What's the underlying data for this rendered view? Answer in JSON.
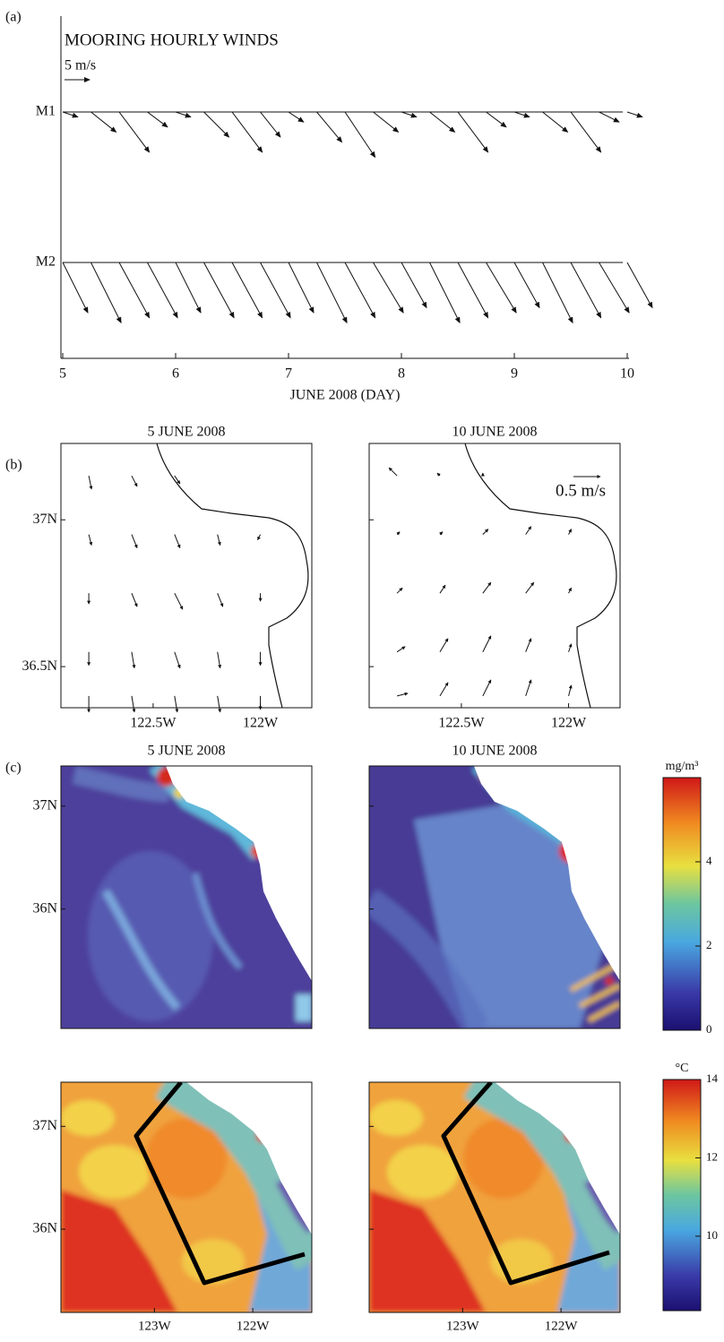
{
  "chart_data": [
    {
      "type": "quiver",
      "panel_label": "(a)",
      "title": "MOORING HOURLY WINDS",
      "scale_label": "5 m/s",
      "scale_value": 5,
      "xlabel": "JUNE 2008 (DAY)",
      "xlim": [
        5,
        10
      ],
      "xticks": [
        5,
        6,
        7,
        8,
        9,
        10
      ],
      "x": [
        5,
        5.25,
        5.5,
        5.75,
        6,
        6.25,
        6.5,
        6.75,
        7,
        7.25,
        7.5,
        7.75,
        8,
        8.25,
        8.5,
        8.75,
        9,
        9.25,
        9.5,
        9.75,
        10
      ],
      "series": [
        {
          "name": "M1",
          "color": "#111111",
          "u": [
            3,
            5,
            6,
            4,
            3,
            5,
            6,
            4,
            3,
            5,
            6,
            5,
            3,
            5,
            6,
            4,
            3,
            5,
            6,
            4,
            3
          ],
          "v": [
            -1,
            -4,
            -8,
            -3,
            -1,
            -5,
            -8,
            -5,
            -2,
            -6,
            -9,
            -4,
            -1,
            -4,
            -8,
            -3,
            -1,
            -4,
            -8,
            -2,
            -1
          ]
        },
        {
          "name": "M2",
          "color": "#111111",
          "u": [
            5,
            6,
            6,
            6,
            5,
            6,
            6,
            6,
            5,
            6,
            6,
            6,
            5,
            6,
            6,
            6,
            5,
            6,
            6,
            6,
            5
          ],
          "v": [
            -10,
            -12,
            -11,
            -11,
            -10,
            -11,
            -11,
            -11,
            -10,
            -12,
            -11,
            -10,
            -9,
            -12,
            -11,
            -10,
            -9,
            -12,
            -11,
            -10,
            -9
          ]
        }
      ]
    },
    {
      "type": "current-map",
      "panel_label": "(b)",
      "scale_label": "0.5 m/s",
      "scale_value": 0.5,
      "xlim": [
        -122.93,
        -121.76
      ],
      "ylim": [
        36.36,
        37.26
      ],
      "xticks": [
        {
          "value": -122.5,
          "label": "122.5W"
        },
        {
          "value": -122,
          "label": "122W"
        }
      ],
      "yticks": [
        {
          "value": 37,
          "label": "37N"
        },
        {
          "value": 36.5,
          "label": "36.5N"
        }
      ],
      "lon": [
        -122.8,
        -122.6,
        -122.4,
        -122.2,
        -122.0
      ],
      "lat": [
        37.15,
        36.95,
        36.75,
        36.55,
        36.4
      ],
      "maps": [
        {
          "title": "5 JUNE 2008",
          "u": [
            [
              0.05,
              0.1,
              0.1,
              null,
              null
            ],
            [
              0.05,
              0.1,
              0.1,
              0.05,
              -0.05
            ],
            [
              0.0,
              0.1,
              0.15,
              0.1,
              0.0
            ],
            [
              0.0,
              0.05,
              0.1,
              0.05,
              0.0
            ],
            [
              0.0,
              0.05,
              0.05,
              0.05,
              0.0
            ]
          ],
          "v": [
            [
              -0.25,
              -0.2,
              -0.15,
              null,
              null
            ],
            [
              -0.2,
              -0.25,
              -0.25,
              -0.2,
              -0.1
            ],
            [
              -0.2,
              -0.25,
              -0.3,
              -0.25,
              -0.15
            ],
            [
              -0.25,
              -0.3,
              -0.3,
              -0.3,
              -0.25
            ],
            [
              -0.3,
              -0.3,
              -0.3,
              -0.3,
              -0.25
            ]
          ]
        },
        {
          "title": "10 JUNE 2008",
          "u": [
            [
              -0.15,
              -0.05,
              0.0,
              null,
              null
            ],
            [
              0.05,
              0.05,
              0.1,
              0.1,
              0.05
            ],
            [
              0.1,
              0.1,
              0.15,
              0.15,
              0.05
            ],
            [
              0.15,
              0.15,
              0.15,
              0.1,
              0.05
            ],
            [
              0.2,
              0.15,
              0.15,
              0.1,
              0.05
            ]
          ],
          "v": [
            [
              0.15,
              0.05,
              0.05,
              null,
              null
            ],
            [
              0.05,
              0.05,
              0.1,
              0.15,
              0.1
            ],
            [
              0.1,
              0.15,
              0.2,
              0.2,
              0.1
            ],
            [
              0.1,
              0.25,
              0.3,
              0.25,
              0.15
            ],
            [
              0.05,
              0.25,
              0.3,
              0.3,
              0.2
            ]
          ]
        }
      ]
    },
    {
      "type": "image-map",
      "panel_label": "(c)",
      "titles": [
        "5 JUNE 2008",
        "10 JUNE 2008"
      ],
      "xlim": [
        -123.95,
        -121.4
      ],
      "rows": [
        {
          "kind": "chlorophyll",
          "colorbar_label": "mg/m³",
          "clim": [
            0,
            6
          ],
          "cticks": [
            0,
            2,
            4
          ],
          "ylim": [
            34.84,
            37.39
          ],
          "yticks": [
            {
              "value": 37,
              "label": "37N"
            },
            {
              "value": 36,
              "label": "36N"
            }
          ]
        },
        {
          "kind": "sst",
          "colorbar_label": "°C",
          "clim": [
            8.1,
            14
          ],
          "cticks": [
            10,
            12,
            14
          ],
          "ylim": [
            35.19,
            37.43
          ],
          "yticks": [
            {
              "value": 37,
              "label": "37N"
            },
            {
              "value": 36,
              "label": "36N"
            }
          ],
          "xticks": [
            {
              "value": -123,
              "label": "123W"
            },
            {
              "value": -122,
              "label": "122W"
            }
          ]
        }
      ]
    }
  ]
}
